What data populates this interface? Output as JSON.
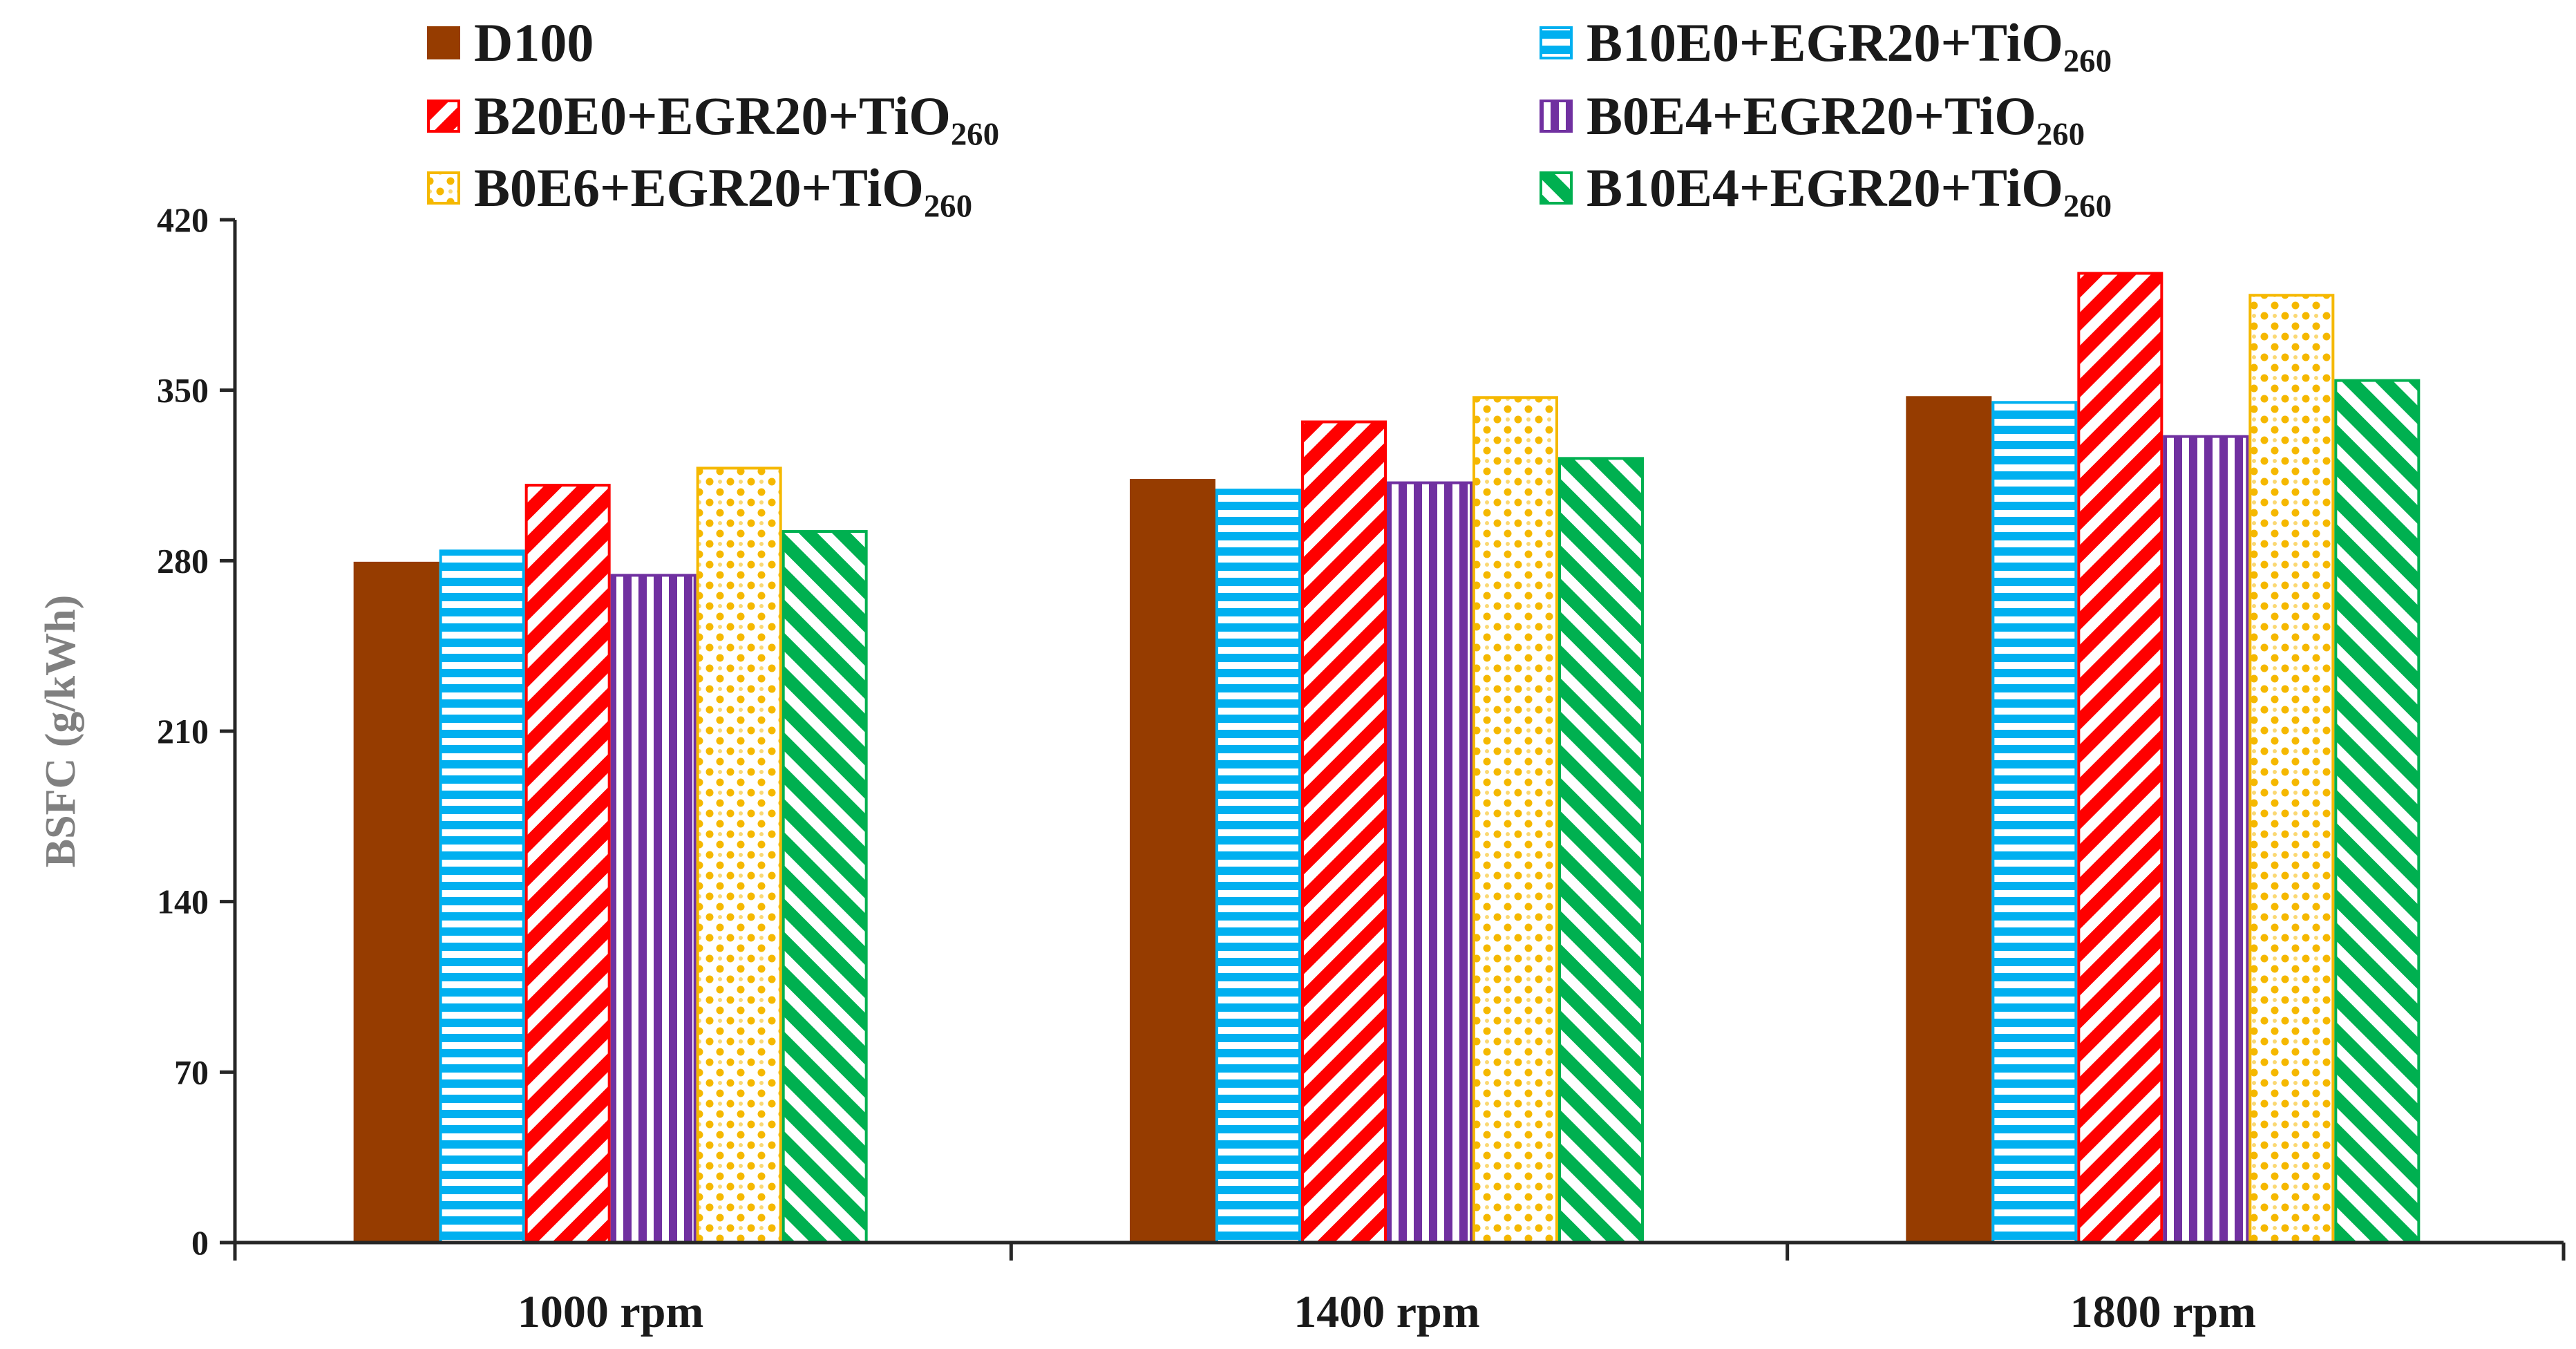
{
  "chart_data": {
    "type": "bar",
    "title": "",
    "xlabel": "",
    "ylabel": "BSFC (g/kWh)",
    "ylim": [
      0,
      420
    ],
    "yticks": [
      0,
      70,
      140,
      210,
      280,
      350,
      420
    ],
    "grid": false,
    "legend_position": "top",
    "categories": [
      "1000 rpm",
      "1400 rpm",
      "1800 rpm"
    ],
    "series": [
      {
        "name": "D100",
        "values": [
          279,
          313,
          347
        ],
        "color": "#963c00",
        "pattern": "solid"
      },
      {
        "name": "B10E0+EGR20+TiO₂₆₀",
        "values": [
          284,
          309,
          345
        ],
        "color": "#00b0f0",
        "pattern": "horizontal"
      },
      {
        "name": "B20E0+EGR20+TiO₂₆₀",
        "values": [
          311,
          337,
          398
        ],
        "color": "#ff0000",
        "pattern": "diagonal-up"
      },
      {
        "name": "B0E4+EGR20+TiO₂₆₀",
        "values": [
          274,
          312,
          331
        ],
        "color": "#7030a0",
        "pattern": "vertical"
      },
      {
        "name": "B0E6+EGR20+TiO₂₆₀",
        "values": [
          318,
          347,
          389
        ],
        "color": "#f5b800",
        "pattern": "dots"
      },
      {
        "name": "B10E4+EGR20+TiO₂₆₀",
        "values": [
          292,
          322,
          354
        ],
        "color": "#00b050",
        "pattern": "diagonal-down"
      }
    ]
  }
}
